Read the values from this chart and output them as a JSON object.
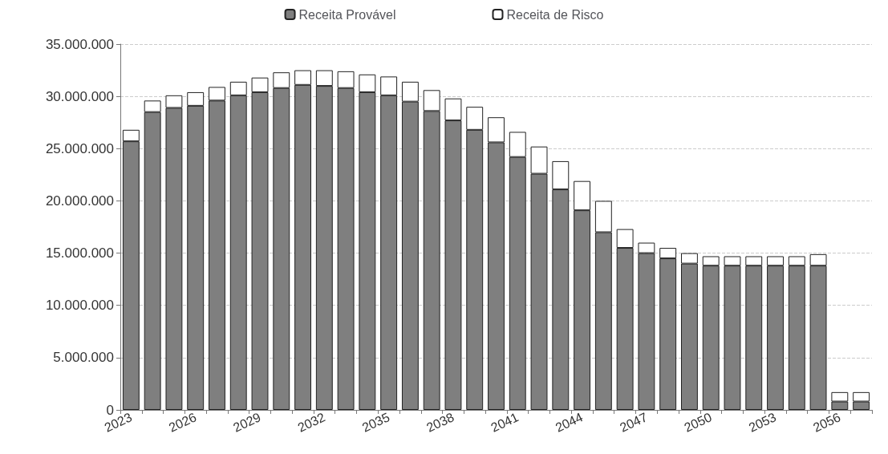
{
  "chart_data": {
    "type": "bar",
    "stacked": true,
    "categories": [
      "2023",
      null,
      null,
      "2026",
      null,
      null,
      "2029",
      null,
      null,
      "2032",
      null,
      null,
      "2035",
      null,
      null,
      "2038",
      null,
      null,
      "2041",
      null,
      null,
      "2044",
      null,
      null,
      "2047",
      null,
      null,
      "2050",
      null,
      null,
      "2053",
      null,
      null,
      "2056",
      null
    ],
    "series": [
      {
        "name": "Receita Provável",
        "color": "#7f7f7f",
        "values": [
          25700000,
          28500000,
          28900000,
          29100000,
          29600000,
          30100000,
          30400000,
          30800000,
          31100000,
          31000000,
          30800000,
          30400000,
          30100000,
          29500000,
          28600000,
          27700000,
          26800000,
          25600000,
          24200000,
          22600000,
          21100000,
          19100000,
          17000000,
          15500000,
          15000000,
          14500000,
          14000000,
          13800000,
          13800000,
          13800000,
          13800000,
          13800000,
          13800000,
          800000,
          800000
        ]
      },
      {
        "name": "Receita de Risco",
        "color": "#ffffff",
        "values": [
          1100000,
          1100000,
          1200000,
          1300000,
          1300000,
          1300000,
          1400000,
          1500000,
          1400000,
          1500000,
          1600000,
          1700000,
          1800000,
          1900000,
          2000000,
          2100000,
          2200000,
          2400000,
          2400000,
          2600000,
          2700000,
          2800000,
          3000000,
          1800000,
          1000000,
          1000000,
          1000000,
          900000,
          900000,
          900000,
          900000,
          900000,
          1100000,
          900000,
          900000
        ]
      }
    ],
    "ylim": [
      0,
      35000000
    ],
    "yticks": [
      0,
      {
        "value": 5000000,
        "label": "5.000.000"
      },
      {
        "value": 10000000,
        "label": "10.000.000"
      },
      {
        "value": 15000000,
        "label": "15.000.000"
      },
      {
        "value": 20000000,
        "label": "20.000.000"
      },
      {
        "value": 25000000,
        "label": "25.000.000"
      },
      {
        "value": 30000000,
        "label": "30.000.000"
      },
      {
        "value": 35000000,
        "label": "35.000.000"
      }
    ],
    "grid": "y",
    "legend": "top"
  }
}
